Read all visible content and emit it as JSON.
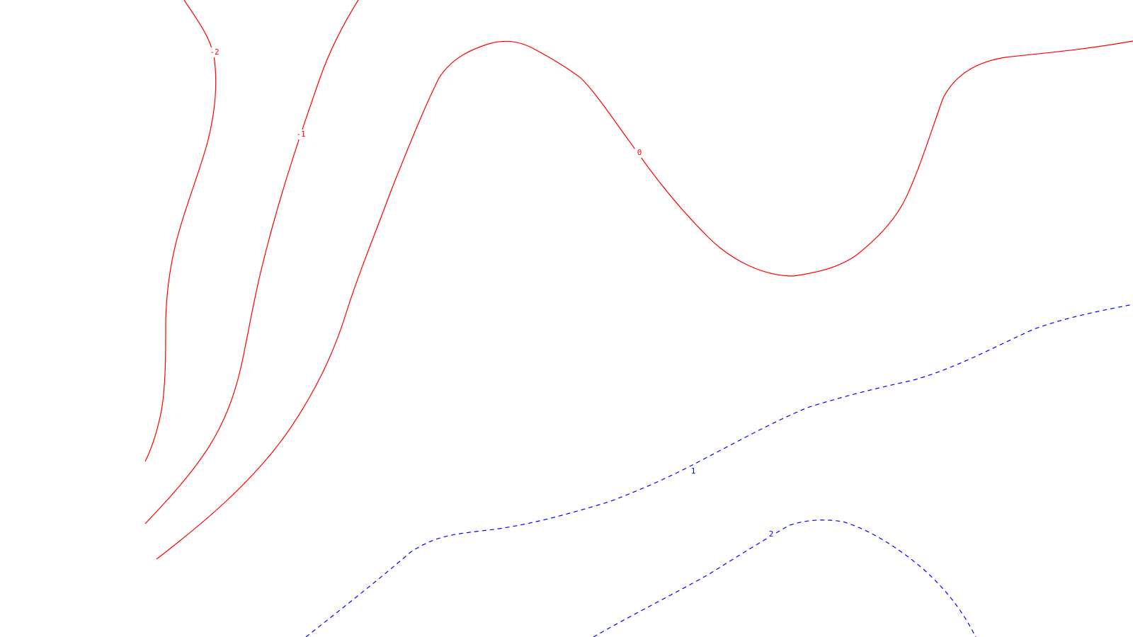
{
  "chart_data": {
    "type": "contour",
    "grid": false,
    "colors": {
      "negative": "#ff0000",
      "zero": "#ff0000",
      "positive": "#0000ff"
    },
    "line_styles": {
      "negative": "solid",
      "zero": "solid",
      "positive": "dashed"
    },
    "levels": [
      {
        "name": "level-minus-2",
        "value": -2,
        "label": "-2",
        "sign": "negative"
      },
      {
        "name": "level-minus-1",
        "value": -1,
        "label": "-1",
        "sign": "negative"
      },
      {
        "name": "level-zero",
        "value": 0,
        "label": "0",
        "sign": "zero"
      },
      {
        "name": "level-plus-1",
        "value": 1,
        "label": "1",
        "sign": "positive"
      },
      {
        "name": "level-plus-2",
        "value": 2,
        "label": "2",
        "sign": "positive"
      }
    ]
  }
}
